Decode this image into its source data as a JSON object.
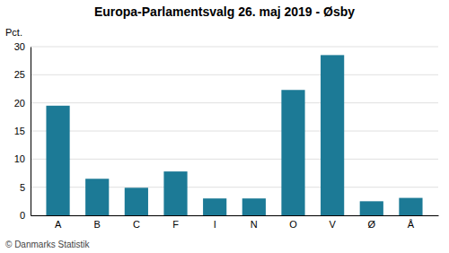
{
  "chart_data": {
    "type": "bar",
    "title": "Europa-Parlamentsvalg 26. maj 2019 - Øsby",
    "categories": [
      "A",
      "B",
      "C",
      "F",
      "I",
      "N",
      "O",
      "V",
      "Ø",
      "Å"
    ],
    "values": [
      19.5,
      6.5,
      4.9,
      7.8,
      3.0,
      3.0,
      22.3,
      28.5,
      2.5,
      3.1
    ],
    "color": "#1c7a96",
    "ylabel": "Pct.",
    "footer": "© Danmarks Statistik",
    "ylim": [
      0,
      30
    ],
    "yticks": [
      0,
      5,
      10,
      15,
      20,
      25,
      30
    ],
    "grid": true
  }
}
